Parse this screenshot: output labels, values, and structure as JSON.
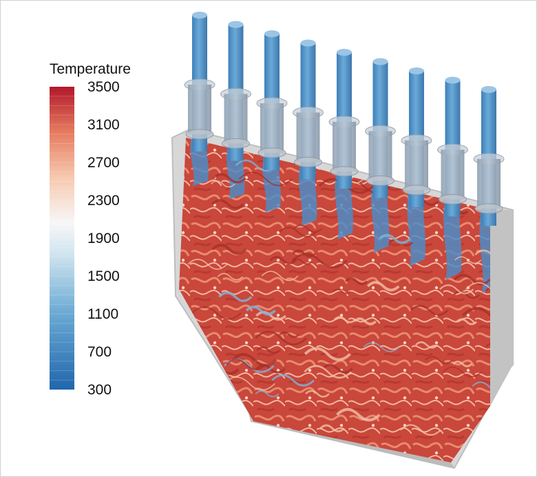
{
  "legend": {
    "title": "Temperature",
    "ticks": [
      "3500",
      "3100",
      "2700",
      "2300",
      "1900",
      "1500",
      "1100",
      "700",
      "300"
    ],
    "colormap": [
      "#b2182b",
      "#d6604d",
      "#f4a582",
      "#fbd5c2",
      "#f7f7f7",
      "#d1e5f0",
      "#92c5de",
      "#4393c3",
      "#2166ac"
    ]
  },
  "scene": {
    "subject": "combustion-chamber-temperature-field",
    "injector_count": 9,
    "colors": {
      "hot": "#c9473b",
      "warm": "#e88a6e",
      "injector": "#5b9bd0",
      "casing": "#c8c8c8"
    }
  }
}
